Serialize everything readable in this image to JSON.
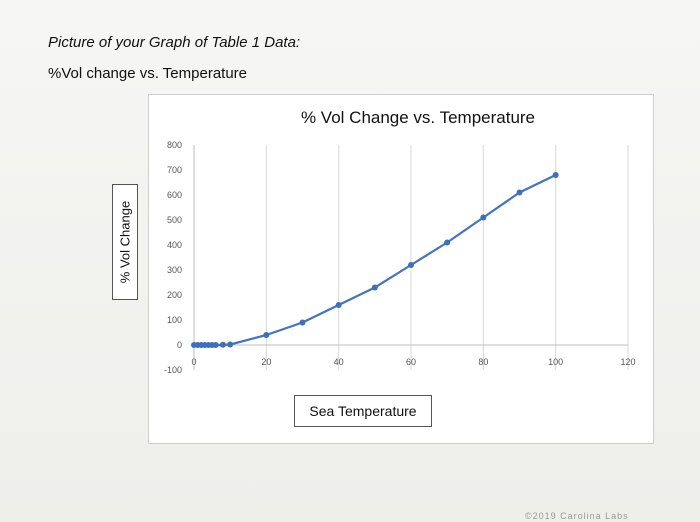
{
  "document": {
    "heading": "Picture of your Graph of Table 1 Data:",
    "subheading": "%Vol change vs. Temperature",
    "footer_mark": "©2019 Carolina Labs"
  },
  "chart_data": {
    "type": "line",
    "title": "% Vol Change vs. Temperature",
    "xlabel": "Sea Temperature",
    "ylabel": "% Vol Change",
    "xlim": [
      0,
      120
    ],
    "ylim": [
      -100,
      800
    ],
    "x_ticks": [
      0,
      20,
      40,
      60,
      80,
      100,
      120
    ],
    "y_ticks": [
      -100,
      0,
      100,
      200,
      300,
      400,
      500,
      600,
      700,
      800
    ],
    "grid": "vertical",
    "line_color": "#4472c4",
    "marker_color": "#3f6fb8",
    "series": [
      {
        "x": [
          0,
          1,
          2,
          3,
          4,
          5,
          6,
          8,
          10,
          20,
          30,
          40,
          50,
          60,
          70,
          80,
          90,
          100
        ],
        "y": [
          0,
          0,
          0,
          0,
          0,
          0,
          0,
          1,
          2,
          40,
          90,
          160,
          230,
          320,
          410,
          510,
          610,
          680
        ]
      }
    ]
  }
}
